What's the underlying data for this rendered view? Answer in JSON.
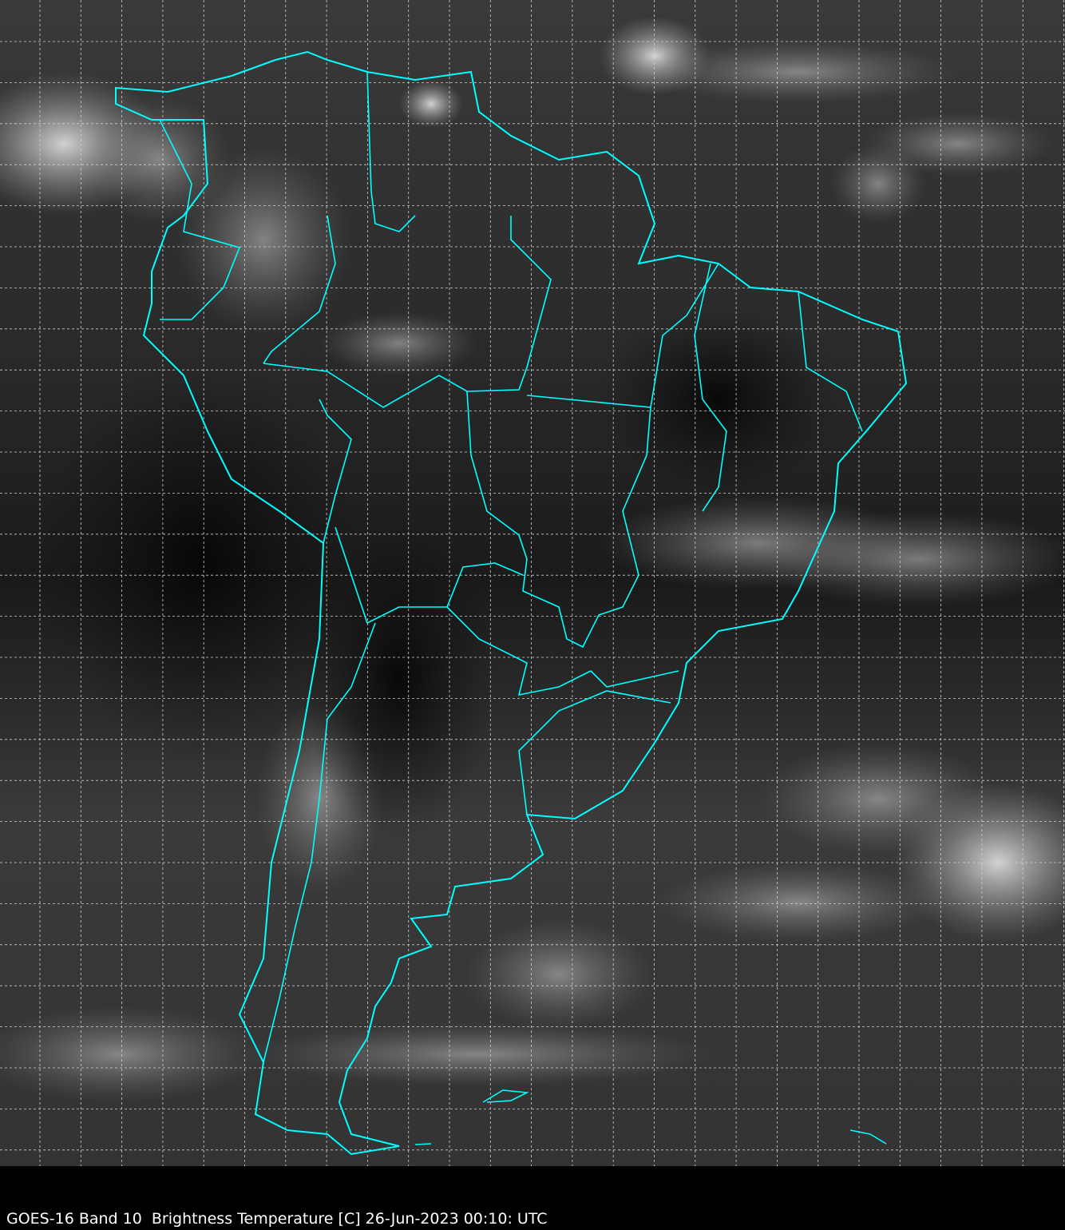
{
  "caption": "GOES-16 Band 10  Brightness Temperature [C] 26-Jun-2023 00:10: UTC",
  "colors": {
    "borders": "#00ffff",
    "grid": "#d0d0d0",
    "background": "#000000"
  },
  "map": {
    "layers": [
      "infrared-imagery",
      "country-borders",
      "lat-lon-grid"
    ]
  }
}
